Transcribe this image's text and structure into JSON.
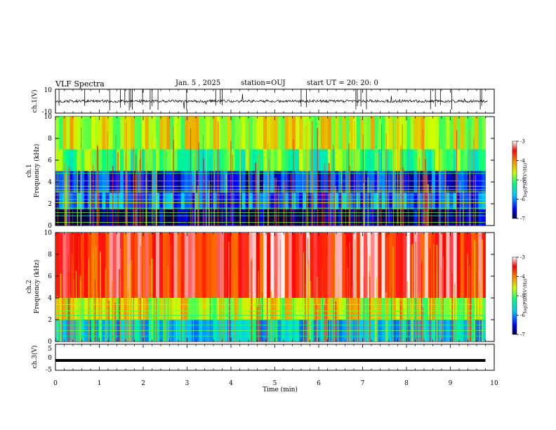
{
  "header": {
    "title": "VLF Spectra",
    "date": "Jan. 5 , 2025",
    "station": "station=OUJ",
    "start": "start UT =  20: 20: 0"
  },
  "chart_data": [
    {
      "type": "line",
      "name": "ch1-waveform",
      "ylabel": "ch.1(V)",
      "ylim": [
        -10,
        10
      ],
      "yticks": [
        "10",
        "-10"
      ],
      "xlim": [
        0,
        10
      ],
      "baseline": 0,
      "color": "#000000"
    },
    {
      "type": "heatmap",
      "name": "ch1-spectrogram",
      "ylabel_line1": "ch.1",
      "ylabel_line2": "Frequency (kHz)",
      "ylim": [
        0,
        10
      ],
      "yticks": [
        "0",
        "2",
        "4",
        "6",
        "8",
        "10"
      ],
      "xlim": [
        0,
        9.8
      ],
      "colorbar": {
        "min": -7,
        "max": -3,
        "ticks": [
          "-3",
          "-4",
          "-5",
          "-6",
          "-7"
        ],
        "label": "log(PSD)(V²/Hz)"
      },
      "background_bands_khz": [
        {
          "from": 0,
          "to": 1.5,
          "level": -6.9
        },
        {
          "from": 1.5,
          "to": 3,
          "level": -6.1
        },
        {
          "from": 3,
          "to": 5,
          "level": -6.4
        },
        {
          "from": 5,
          "to": 7,
          "level": -5.1
        },
        {
          "from": 7,
          "to": 10,
          "level": -4.6
        }
      ],
      "tone_lines_khz": [
        0.3,
        0.9,
        1.2,
        1.6,
        2.1,
        2.4,
        2.8,
        3.1,
        3.3,
        3.6,
        4.1,
        4.8
      ]
    },
    {
      "type": "heatmap",
      "name": "ch2-spectrogram",
      "ylabel_line1": "ch.2",
      "ylabel_line2": "Frequency (kHz)",
      "ylim": [
        0,
        10
      ],
      "yticks": [
        "0",
        "2",
        "4",
        "6",
        "8",
        "10"
      ],
      "xlim": [
        0,
        9.8
      ],
      "colorbar": {
        "min": -7,
        "max": -3,
        "ticks": [
          "-3",
          "-4",
          "-5",
          "-6",
          "-7"
        ],
        "label": "log(PSD)(V²/Hz)"
      },
      "background_bands_khz": [
        {
          "from": 0,
          "to": 2,
          "level": -5.7
        },
        {
          "from": 2,
          "to": 4,
          "level": -4.6
        },
        {
          "from": 4,
          "to": 10,
          "level": -3.5
        }
      ],
      "tone_lines_khz": [
        0.5,
        1.0,
        1.5,
        2.0,
        2.4,
        2.8,
        3.4
      ]
    },
    {
      "type": "line",
      "name": "ch3-waveform",
      "ylabel": "ch.3(V)",
      "ylim": [
        -5,
        5
      ],
      "yticks": [
        "5",
        "0",
        "-5"
      ],
      "xlim": [
        0,
        9.8
      ],
      "baseline": -1.2,
      "color": "#000000"
    }
  ],
  "xaxis": {
    "label": "Time (min)",
    "ticks": [
      "0",
      "1",
      "2",
      "3",
      "4",
      "5",
      "6",
      "7",
      "8",
      "9",
      "10"
    ],
    "range": [
      0,
      10
    ]
  }
}
